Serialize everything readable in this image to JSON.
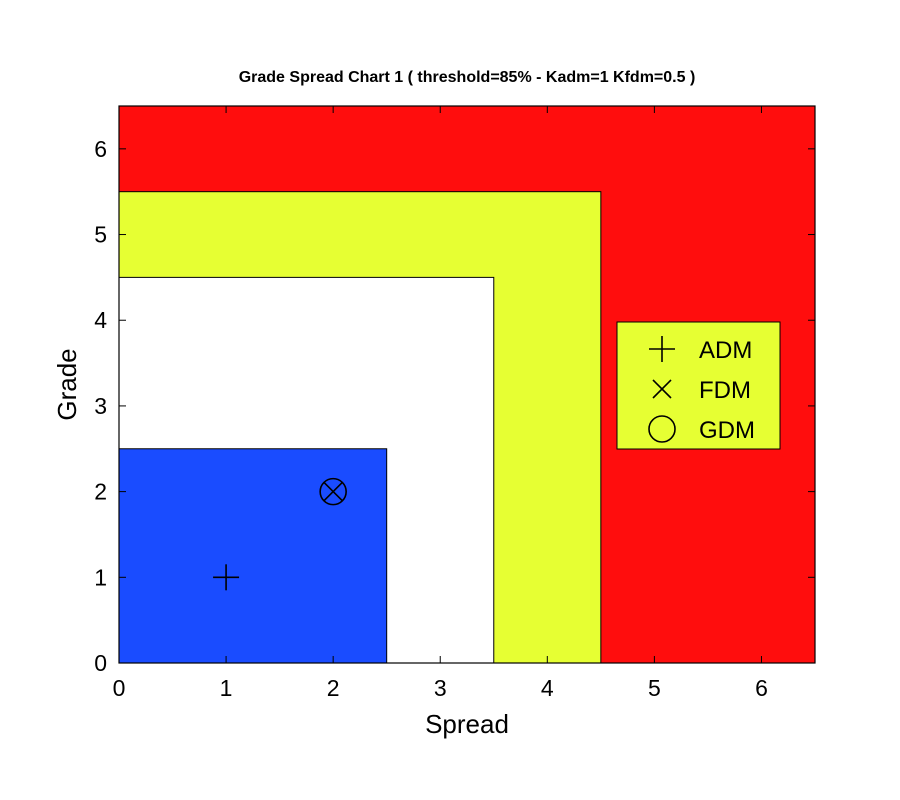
{
  "chart_data": {
    "type": "scatter",
    "title": "Grade Spread Chart 1 ( threshold=85% - Kadm=1  Kfdm=0.5 )",
    "xlabel": "Spread",
    "ylabel": "Grade",
    "xlim": [
      0,
      6.5
    ],
    "ylim": [
      0,
      6.5
    ],
    "x_ticks": [
      "0",
      "1",
      "2",
      "3",
      "4",
      "5",
      "6"
    ],
    "y_ticks": [
      "0",
      "1",
      "2",
      "3",
      "4",
      "5",
      "6"
    ],
    "grid": false,
    "legend_position": "right",
    "regions": [
      {
        "name": "red-zone",
        "x_max": 6.5,
        "y_max": 6.5,
        "color": "#ff0d0d"
      },
      {
        "name": "yellow-zone",
        "x_max": 4.5,
        "y_max": 5.5,
        "color": "#e6ff33"
      },
      {
        "name": "white-zone",
        "x_max": 3.5,
        "y_max": 4.5,
        "color": "#ffffff"
      },
      {
        "name": "blue-zone",
        "x_max": 2.5,
        "y_max": 2.5,
        "color": "#1a4cff"
      }
    ],
    "series": [
      {
        "name": "ADM",
        "marker": "plus",
        "points": [
          [
            1,
            1
          ]
        ]
      },
      {
        "name": "FDM",
        "marker": "x",
        "points": [
          [
            2,
            2
          ]
        ]
      },
      {
        "name": "GDM",
        "marker": "circle",
        "points": [
          [
            2,
            2
          ]
        ]
      }
    ],
    "legend_background": "#e6ff33"
  }
}
